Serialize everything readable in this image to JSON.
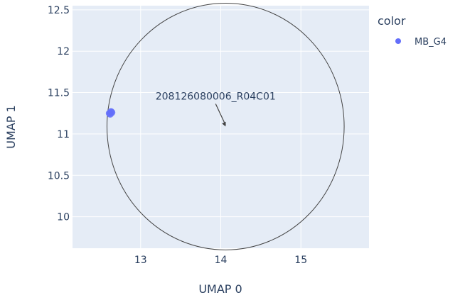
{
  "chart_data": {
    "type": "scatter",
    "xlabel": "UMAP 0",
    "ylabel": "UMAP 1",
    "xlim": [
      12.15,
      15.85
    ],
    "ylim": [
      9.62,
      12.55
    ],
    "xticks": [
      13,
      14,
      15
    ],
    "yticks": [
      10,
      10.5,
      11,
      11.5,
      12,
      12.5
    ],
    "ytick_labels": [
      "10",
      "10.5",
      "11",
      "11.5",
      "12",
      "12.5"
    ],
    "xtick_labels": [
      "13",
      "14",
      "15"
    ],
    "grid": true,
    "legend": {
      "title": "color",
      "position": "top-right"
    },
    "series": [
      {
        "name": "MB_G4",
        "color": "#636efa",
        "x": [
          12.61,
          12.63,
          12.64,
          12.62
        ],
        "y": [
          11.25,
          11.27,
          11.26,
          11.24
        ]
      }
    ],
    "annotation": {
      "text": "208126080006_R04C01",
      "x": 14.06,
      "y": 11.09
    },
    "circle": {
      "center": [
        14.06,
        11.09
      ],
      "radius_x": 1.48,
      "radius_y": 1.49,
      "stroke": "#444444"
    },
    "plot_bg": "#e5ecf6"
  }
}
